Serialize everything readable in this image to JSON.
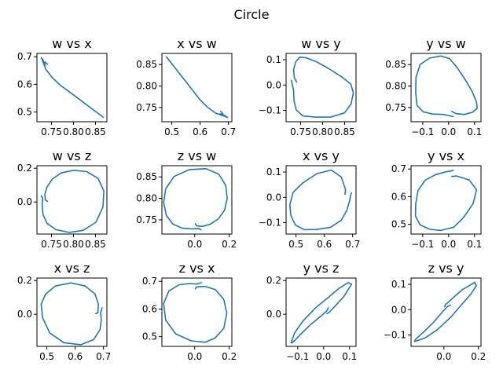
{
  "figure": {
    "suptitle": "Circle",
    "line_color": "#1f77b4"
  },
  "chart_data": [
    {
      "type": "line",
      "title": "w vs x",
      "xlabel": "",
      "ylabel": "",
      "xlim": [
        0.717,
        0.876
      ],
      "ylim": [
        0.465,
        0.712
      ],
      "xticks": [
        0.75,
        0.8,
        0.85
      ],
      "xtick_labels": [
        "0.75",
        "0.80",
        "0.85"
      ],
      "yticks": [
        0.5,
        0.6,
        0.7
      ],
      "ytick_labels": [
        "0.5",
        "0.6",
        "0.7"
      ],
      "x": [
        0.741,
        0.735,
        0.735,
        0.731,
        0.727,
        0.73,
        0.737,
        0.751,
        0.77,
        0.8,
        0.835,
        0.868
      ],
      "y": [
        0.673,
        0.681,
        0.667,
        0.688,
        0.697,
        0.685,
        0.655,
        0.626,
        0.597,
        0.562,
        0.52,
        0.481
      ]
    },
    {
      "type": "line",
      "title": "x vs w",
      "xlabel": "",
      "ylabel": "",
      "xlim": [
        0.465,
        0.712
      ],
      "ylim": [
        0.717,
        0.876
      ],
      "xticks": [
        0.5,
        0.6,
        0.7
      ],
      "xtick_labels": [
        "0.5",
        "0.6",
        "0.7"
      ],
      "yticks": [
        0.75,
        0.8,
        0.85
      ],
      "ytick_labels": [
        "0.75",
        "0.80",
        "0.85"
      ],
      "x": [
        0.673,
        0.681,
        0.667,
        0.688,
        0.697,
        0.685,
        0.655,
        0.626,
        0.597,
        0.562,
        0.52,
        0.481
      ],
      "y": [
        0.741,
        0.735,
        0.735,
        0.731,
        0.727,
        0.73,
        0.737,
        0.751,
        0.77,
        0.8,
        0.835,
        0.868
      ]
    },
    {
      "type": "line",
      "title": "w vs y",
      "xlabel": "",
      "ylabel": "",
      "xlim": [
        0.717,
        0.876
      ],
      "ylim": [
        -0.145,
        0.125
      ],
      "xticks": [
        0.75,
        0.8,
        0.85
      ],
      "xtick_labels": [
        "0.75",
        "0.80",
        "0.85"
      ],
      "yticks": [
        0.1,
        0.0,
        -0.1
      ],
      "ytick_labels": [
        "0.1",
        "0.0",
        "−0.1"
      ],
      "x": [
        0.741,
        0.736,
        0.734,
        0.739,
        0.748,
        0.762,
        0.786,
        0.813,
        0.842,
        0.864,
        0.87,
        0.865,
        0.85,
        0.82,
        0.785,
        0.755,
        0.74,
        0.735,
        0.734,
        0.73,
        0.729
      ],
      "y": [
        0.012,
        0.028,
        0.06,
        0.092,
        0.11,
        0.108,
        0.092,
        0.066,
        0.034,
        0.004,
        -0.03,
        -0.074,
        -0.11,
        -0.126,
        -0.127,
        -0.122,
        -0.098,
        -0.062,
        -0.02,
        0.01,
        0.018
      ]
    },
    {
      "type": "line",
      "title": "y vs w",
      "xlabel": "",
      "ylabel": "",
      "xlim": [
        -0.145,
        0.125
      ],
      "ylim": [
        0.717,
        0.876
      ],
      "xticks": [
        -0.1,
        0.0,
        0.1
      ],
      "xtick_labels": [
        "−0.1",
        "0.0",
        "0.1"
      ],
      "yticks": [
        0.75,
        0.8,
        0.85
      ],
      "ytick_labels": [
        "0.75",
        "0.80",
        "0.85"
      ],
      "x": [
        0.012,
        0.028,
        0.06,
        0.092,
        0.11,
        0.108,
        0.092,
        0.066,
        0.034,
        0.004,
        -0.03,
        -0.074,
        -0.11,
        -0.126,
        -0.127,
        -0.122,
        -0.098,
        -0.062,
        -0.02,
        0.01,
        0.018
      ],
      "y": [
        0.741,
        0.736,
        0.734,
        0.739,
        0.748,
        0.762,
        0.786,
        0.813,
        0.842,
        0.864,
        0.87,
        0.865,
        0.85,
        0.82,
        0.785,
        0.755,
        0.74,
        0.735,
        0.734,
        0.73,
        0.729
      ]
    },
    {
      "type": "line",
      "title": "w vs z",
      "xlabel": "",
      "ylabel": "",
      "xlim": [
        0.717,
        0.876
      ],
      "ylim": [
        -0.19,
        0.215
      ],
      "xticks": [
        0.75,
        0.8,
        0.85
      ],
      "xtick_labels": [
        "0.75",
        "0.80",
        "0.85"
      ],
      "yticks": [
        0.2,
        0.0
      ],
      "ytick_labels": [
        "0.2",
        "0.0"
      ],
      "x": [
        0.741,
        0.736,
        0.735,
        0.74,
        0.752,
        0.772,
        0.8,
        0.83,
        0.856,
        0.869,
        0.867,
        0.851,
        0.822,
        0.79,
        0.76,
        0.74,
        0.731,
        0.729,
        0.73,
        0.727,
        0.727
      ],
      "y": [
        0.004,
        0.012,
        0.046,
        0.09,
        0.136,
        0.172,
        0.188,
        0.18,
        0.14,
        0.066,
        -0.03,
        -0.12,
        -0.168,
        -0.18,
        -0.164,
        -0.126,
        -0.075,
        -0.02,
        0.025,
        0.034,
        0.038
      ]
    },
    {
      "type": "line",
      "title": "z vs w",
      "xlabel": "",
      "ylabel": "",
      "xlim": [
        -0.19,
        0.215
      ],
      "ylim": [
        0.717,
        0.876
      ],
      "xticks": [
        0.0,
        0.2
      ],
      "xtick_labels": [
        "0.0",
        "0.2"
      ],
      "yticks": [
        0.75,
        0.8,
        0.85
      ],
      "ytick_labels": [
        "0.75",
        "0.80",
        "0.85"
      ],
      "x": [
        0.004,
        0.012,
        0.046,
        0.09,
        0.136,
        0.172,
        0.188,
        0.18,
        0.14,
        0.066,
        -0.03,
        -0.12,
        -0.168,
        -0.18,
        -0.164,
        -0.126,
        -0.075,
        -0.02,
        0.025,
        0.034,
        0.038
      ],
      "y": [
        0.741,
        0.736,
        0.735,
        0.74,
        0.752,
        0.772,
        0.8,
        0.83,
        0.856,
        0.869,
        0.867,
        0.851,
        0.822,
        0.79,
        0.76,
        0.74,
        0.731,
        0.729,
        0.73,
        0.727,
        0.727
      ]
    },
    {
      "type": "line",
      "title": "x vs y",
      "xlabel": "",
      "ylabel": "",
      "xlim": [
        0.465,
        0.712
      ],
      "ylim": [
        -0.145,
        0.125
      ],
      "xticks": [
        0.5,
        0.6,
        0.7
      ],
      "xtick_labels": [
        "0.5",
        "0.6",
        "0.7"
      ],
      "yticks": [
        0.1,
        0.0,
        -0.1
      ],
      "ytick_labels": [
        "0.1",
        "0.0",
        "−0.1"
      ],
      "x": [
        0.673,
        0.675,
        0.66,
        0.625,
        0.574,
        0.523,
        0.49,
        0.478,
        0.482,
        0.498,
        0.53,
        0.574,
        0.622,
        0.66,
        0.68,
        0.69,
        0.693,
        0.696
      ],
      "y": [
        0.012,
        0.03,
        0.08,
        0.108,
        0.094,
        0.056,
        0.02,
        -0.03,
        -0.072,
        -0.11,
        -0.128,
        -0.127,
        -0.118,
        -0.09,
        -0.05,
        -0.01,
        0.01,
        0.018
      ]
    },
    {
      "type": "line",
      "title": "y vs x",
      "xlabel": "",
      "ylabel": "",
      "xlim": [
        -0.145,
        0.125
      ],
      "ylim": [
        0.465,
        0.712
      ],
      "xticks": [
        -0.1,
        0.0,
        0.1
      ],
      "xtick_labels": [
        "−0.1",
        "0.0",
        "0.1"
      ],
      "yticks": [
        0.5,
        0.6,
        0.7
      ],
      "ytick_labels": [
        "0.5",
        "0.6",
        "0.7"
      ],
      "x": [
        0.012,
        0.03,
        0.08,
        0.108,
        0.094,
        0.056,
        0.02,
        -0.03,
        -0.072,
        -0.11,
        -0.128,
        -0.127,
        -0.118,
        -0.09,
        -0.05,
        -0.01,
        0.01,
        0.018
      ],
      "y": [
        0.673,
        0.675,
        0.66,
        0.625,
        0.574,
        0.523,
        0.49,
        0.478,
        0.482,
        0.498,
        0.53,
        0.574,
        0.622,
        0.66,
        0.68,
        0.69,
        0.693,
        0.696
      ]
    },
    {
      "type": "line",
      "title": "x vs z",
      "xlabel": "",
      "ylabel": "",
      "xlim": [
        0.465,
        0.712
      ],
      "ylim": [
        -0.19,
        0.215
      ],
      "xticks": [
        0.5,
        0.6,
        0.7
      ],
      "xtick_labels": [
        "0.5",
        "0.6",
        "0.7"
      ],
      "yticks": [
        0.2,
        0.0
      ],
      "ytick_labels": [
        "0.2",
        "0.0"
      ],
      "x": [
        0.673,
        0.68,
        0.682,
        0.67,
        0.635,
        0.585,
        0.53,
        0.495,
        0.48,
        0.485,
        0.51,
        0.56,
        0.62,
        0.665,
        0.688,
        0.692,
        0.69,
        0.695
      ],
      "y": [
        0.004,
        0.01,
        0.06,
        0.12,
        0.168,
        0.186,
        0.168,
        0.118,
        0.06,
        -0.02,
        -0.11,
        -0.168,
        -0.18,
        -0.15,
        -0.09,
        -0.03,
        0.01,
        0.038
      ]
    },
    {
      "type": "line",
      "title": "z vs x",
      "xlabel": "",
      "ylabel": "",
      "xlim": [
        -0.19,
        0.215
      ],
      "ylim": [
        0.465,
        0.712
      ],
      "xticks": [
        0.0,
        0.2
      ],
      "xtick_labels": [
        "0.0",
        "0.2"
      ],
      "yticks": [
        0.5,
        0.6,
        0.7
      ],
      "ytick_labels": [
        "0.5",
        "0.6",
        "0.7"
      ],
      "x": [
        0.004,
        0.01,
        0.06,
        0.12,
        0.168,
        0.186,
        0.168,
        0.118,
        0.06,
        -0.02,
        -0.11,
        -0.168,
        -0.18,
        -0.15,
        -0.09,
        -0.03,
        0.01,
        0.038
      ],
      "y": [
        0.673,
        0.68,
        0.682,
        0.67,
        0.635,
        0.585,
        0.53,
        0.495,
        0.48,
        0.485,
        0.51,
        0.56,
        0.62,
        0.665,
        0.688,
        0.692,
        0.69,
        0.695
      ]
    },
    {
      "type": "line",
      "title": "y vs z",
      "xlabel": "",
      "ylabel": "",
      "xlim": [
        -0.145,
        0.125
      ],
      "ylim": [
        -0.19,
        0.215
      ],
      "xticks": [
        -0.1,
        0.0,
        0.1
      ],
      "xtick_labels": [
        "−0.1",
        "0.0",
        "0.1"
      ],
      "yticks": [
        0.2,
        0.0
      ],
      "ytick_labels": [
        "0.2",
        "0.0"
      ],
      "x": [
        0.012,
        0.02,
        0.045,
        0.078,
        0.1,
        0.108,
        0.095,
        0.06,
        0.018,
        -0.03,
        -0.08,
        -0.112,
        -0.126,
        -0.118,
        -0.09,
        -0.05,
        -0.01,
        0.012,
        0.018
      ],
      "y": [
        0.004,
        0.01,
        0.05,
        0.105,
        0.16,
        0.178,
        0.188,
        0.155,
        0.1,
        0.04,
        -0.04,
        -0.11,
        -0.17,
        -0.165,
        -0.12,
        -0.06,
        -0.01,
        0.02,
        0.038
      ]
    },
    {
      "type": "line",
      "title": "z vs y",
      "xlabel": "",
      "ylabel": "",
      "xlim": [
        -0.19,
        0.215
      ],
      "ylim": [
        -0.145,
        0.125
      ],
      "xticks": [
        0.0,
        0.2
      ],
      "xtick_labels": [
        "0.0",
        "0.2"
      ],
      "yticks": [
        0.1,
        0.0,
        -0.1
      ],
      "ytick_labels": [
        "0.1",
        "0.0",
        "−0.1"
      ],
      "x": [
        0.004,
        0.01,
        0.05,
        0.105,
        0.16,
        0.178,
        0.188,
        0.155,
        0.1,
        0.04,
        -0.04,
        -0.11,
        -0.17,
        -0.165,
        -0.12,
        -0.06,
        -0.01,
        0.02,
        0.038
      ],
      "y": [
        0.012,
        0.02,
        0.045,
        0.078,
        0.1,
        0.108,
        0.095,
        0.06,
        0.018,
        -0.03,
        -0.08,
        -0.112,
        -0.126,
        -0.118,
        -0.09,
        -0.05,
        -0.01,
        0.012,
        0.018
      ]
    }
  ]
}
